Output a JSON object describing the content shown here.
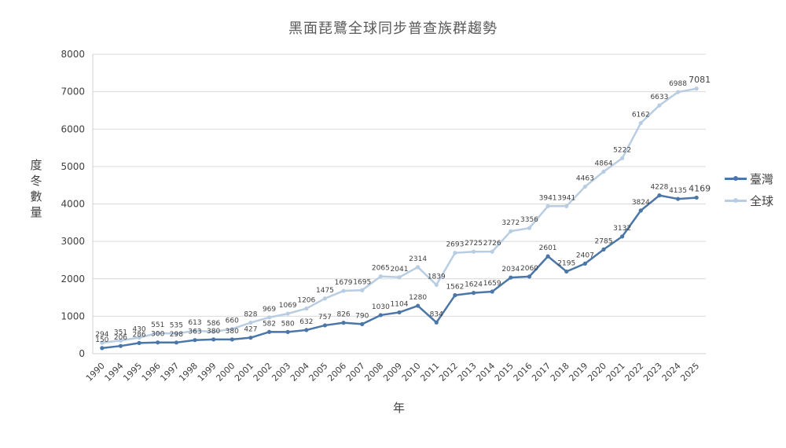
{
  "chart_data": {
    "type": "line",
    "title": "黑面琵鷺全球同步普查族群趨勢",
    "xlabel": "年",
    "ylabel": "度冬數量",
    "ylim": [
      0,
      8000
    ],
    "yticks": [
      0,
      1000,
      2000,
      3000,
      4000,
      5000,
      6000,
      7000,
      8000
    ],
    "grid": true,
    "legend_position": "right",
    "categories": [
      "1990",
      "1994",
      "1995",
      "1996",
      "1997",
      "1998",
      "1999",
      "2000",
      "2001",
      "2002",
      "2003",
      "2004",
      "2005",
      "2006",
      "2007",
      "2008",
      "2009",
      "2010",
      "2011",
      "2012",
      "2013",
      "2014",
      "2015",
      "2016",
      "2017",
      "2018",
      "2019",
      "2020",
      "2021",
      "2022",
      "2023",
      "2024",
      "2025"
    ],
    "series": [
      {
        "name": "臺灣",
        "color": "#4a76a8",
        "values": [
          150,
          206,
          286,
          300,
          298,
          363,
          380,
          380,
          427,
          582,
          580,
          632,
          757,
          826,
          790,
          1030,
          1104,
          1280,
          834,
          1562,
          1624,
          1659,
          2034,
          2060,
          2601,
          2195,
          2407,
          2785,
          3132,
          3824,
          4228,
          4135,
          4169
        ]
      },
      {
        "name": "全球",
        "color": "#b9cde2",
        "values": [
          294,
          351,
          430,
          551,
          535,
          613,
          586,
          660,
          828,
          969,
          1069,
          1206,
          1475,
          1679,
          1695,
          2065,
          2041,
          2314,
          1839,
          2693,
          2725,
          2726,
          3272,
          3356,
          3941,
          3941,
          4463,
          4864,
          5222,
          6162,
          6633,
          6988,
          7081
        ]
      }
    ]
  },
  "labels": {
    "title": "黑面琵鷺全球同步普查族群趨勢",
    "xlabel": "年",
    "ylabel": "度冬數量",
    "legend": [
      {
        "name": "臺灣",
        "color": "#4a76a8"
      },
      {
        "name": "全球",
        "color": "#b9cde2"
      }
    ]
  }
}
